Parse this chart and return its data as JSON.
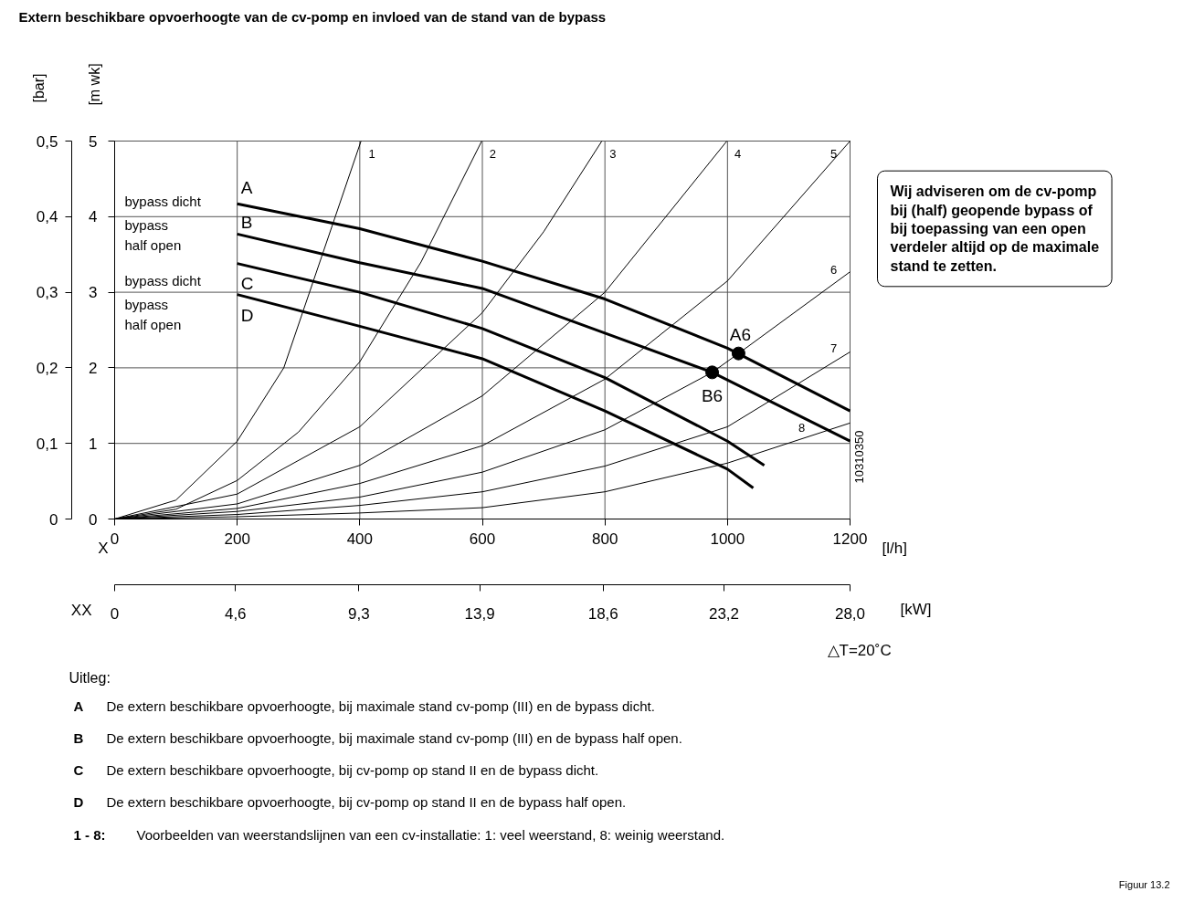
{
  "chart_data": {
    "type": "line",
    "title": "Extern beschikbare opvoerhoogte van de cv-pomp en invloed van de stand van de bypass",
    "xlabel": "[l/h]",
    "x2label": "[kW]",
    "ylabel": "[m wk]",
    "y2label": "[bar]",
    "xlim": [
      0,
      1200
    ],
    "xticks": [
      0,
      200,
      400,
      600,
      800,
      1000,
      1200
    ],
    "x2lim": [
      0,
      28.0
    ],
    "x2ticks": [
      {
        "value": 0,
        "label": "0"
      },
      {
        "value": 4.6,
        "label": "4,6"
      },
      {
        "value": 9.3,
        "label": "9,3"
      },
      {
        "value": 13.9,
        "label": "13,9"
      },
      {
        "value": 18.6,
        "label": "18,6"
      },
      {
        "value": 23.2,
        "label": "23,2"
      },
      {
        "value": 28.0,
        "label": "28,0"
      }
    ],
    "ylim": [
      0,
      5
    ],
    "yticks": [
      0,
      1,
      2,
      3,
      4,
      5
    ],
    "y2lim": [
      0,
      0.5
    ],
    "y2ticks": [
      {
        "value": 0,
        "label": "0"
      },
      {
        "value": 0.1,
        "label": "0,1"
      },
      {
        "value": 0.2,
        "label": "0,2"
      },
      {
        "value": 0.3,
        "label": "0,3"
      },
      {
        "value": 0.4,
        "label": "0,4"
      },
      {
        "value": 0.5,
        "label": "0,5"
      }
    ],
    "grid": true,
    "series": [
      {
        "name": "A",
        "color": "#000000",
        "x": [
          200,
          400,
          600,
          800,
          1000,
          1200
        ],
        "values": [
          4.17,
          3.84,
          3.41,
          2.91,
          2.26,
          1.43
        ]
      },
      {
        "name": "B",
        "color": "#000000",
        "x": [
          200,
          400,
          600,
          800,
          975,
          1200
        ],
        "values": [
          3.77,
          3.39,
          3.05,
          2.46,
          1.94,
          1.03
        ]
      },
      {
        "name": "C",
        "color": "#000000",
        "x": [
          200,
          400,
          600,
          800,
          1000,
          1060
        ],
        "values": [
          3.38,
          3.0,
          2.52,
          1.87,
          1.03,
          0.71
        ]
      },
      {
        "name": "D",
        "color": "#000000",
        "x": [
          200,
          400,
          600,
          800,
          1000,
          1042
        ],
        "values": [
          2.97,
          2.55,
          2.12,
          1.43,
          0.66,
          0.41
        ]
      },
      {
        "name": "1",
        "color": "#000000",
        "x": [
          0,
          100,
          200,
          276,
          318,
          360,
          402
        ],
        "values": [
          0,
          0.25,
          1.03,
          2.0,
          3.0,
          4.0,
          5.0
        ]
      },
      {
        "name": "2",
        "color": "#000000",
        "x": [
          0,
          100,
          200,
          300,
          400,
          500,
          599
        ],
        "values": [
          0,
          0.13,
          0.51,
          1.15,
          2.08,
          3.4,
          5.0
        ]
      },
      {
        "name": "3",
        "color": "#000000",
        "x": [
          0,
          200,
          400,
          600,
          700,
          795
        ],
        "values": [
          0,
          0.33,
          1.22,
          2.73,
          3.8,
          5.0
        ]
      },
      {
        "name": "4",
        "color": "#000000",
        "x": [
          0,
          200,
          400,
          600,
          800,
          999
        ],
        "values": [
          0,
          0.2,
          0.71,
          1.63,
          3.0,
          5.0
        ]
      },
      {
        "name": "5",
        "color": "#000000",
        "x": [
          0,
          200,
          400,
          600,
          800,
          1000,
          1200
        ],
        "values": [
          0,
          0.14,
          0.47,
          0.97,
          1.85,
          3.15,
          5.0
        ]
      },
      {
        "name": "6",
        "color": "#000000",
        "x": [
          0,
          200,
          400,
          600,
          800,
          975,
          1018,
          1200
        ],
        "values": [
          0,
          0.1,
          0.29,
          0.62,
          1.18,
          1.94,
          2.19,
          3.27
        ]
      },
      {
        "name": "7",
        "color": "#000000",
        "x": [
          0,
          200,
          400,
          600,
          800,
          1000,
          1200
        ],
        "values": [
          0,
          0.06,
          0.18,
          0.36,
          0.7,
          1.22,
          2.21
        ]
      },
      {
        "name": "8",
        "color": "#000000",
        "x": [
          0,
          200,
          400,
          600,
          800,
          1000,
          1200
        ],
        "values": [
          0,
          0.03,
          0.08,
          0.15,
          0.36,
          0.74,
          1.27
        ]
      },
      {
        "name": "A6",
        "type": "scatter",
        "marker": "circle",
        "color": "#000000",
        "x": [
          1018
        ],
        "values": [
          2.19
        ]
      },
      {
        "name": "B6",
        "type": "scatter",
        "marker": "circle",
        "color": "#000000",
        "x": [
          975
        ],
        "values": [
          1.94
        ]
      }
    ],
    "annotations": [
      "bypass dicht",
      "bypass half open",
      "bypass dicht",
      "bypass half open",
      "X",
      "XX",
      "△T=20˚C",
      "Wij adviseren om de cv-pomp bij (half) geopende bypass of bij toepassing van een open verdeler altijd op de maximale stand te zetten.",
      "Uitleg:",
      "A",
      "De extern beschikbare opvoerhoogte, bij maximale stand cv-pomp (III) en de bypass dicht.",
      "B",
      "De extern beschikbare opvoerhoogte, bij maximale stand cv-pomp (III) en de bypass half open.",
      "C",
      "De extern beschikbare opvoerhoogte, bij cv-pomp op stand II en de bypass dicht.",
      "D",
      "De extern beschikbare opvoerhoogte, bij cv-pomp op stand II en de bypass half open.",
      "1 - 8:",
      "Voorbeelden van weerstandslijnen van een cv-installatie:   1: veel weerstand, 8: weinig weerstand.",
      "10310350",
      "Figuur 13.2"
    ]
  }
}
